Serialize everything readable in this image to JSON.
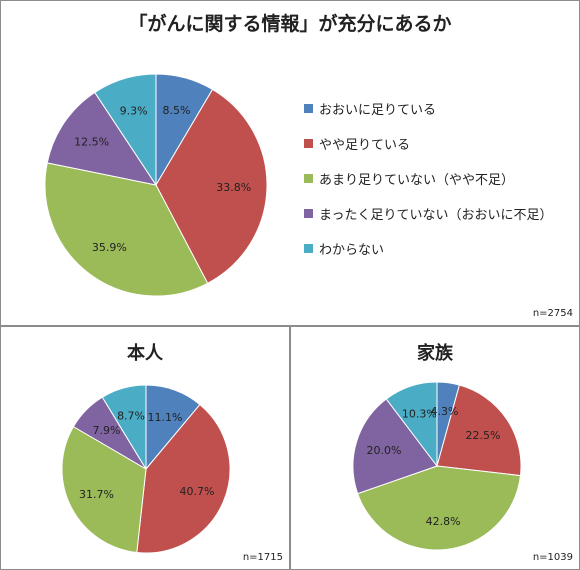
{
  "legend_items": [
    {
      "label": "おおいに足りている",
      "color": "#4f81bd"
    },
    {
      "label": "やや足りている",
      "color": "#c0504d"
    },
    {
      "label": "あまり足りていない（やや不足）",
      "color": "#9bbb59"
    },
    {
      "label": "まったく足りていない（おおいに不足）",
      "color": "#8064a2"
    },
    {
      "label": "わからない",
      "color": "#4bacc6"
    }
  ],
  "chart_data": [
    {
      "type": "pie",
      "title": "「がんに関する情報」が充分にあるか",
      "n_label": "n=2754",
      "categories": [
        "おおいに足りている",
        "やや足りている",
        "あまり足りていない（やや不足）",
        "まったく足りていない（おおいに不足）",
        "わからない"
      ],
      "values": [
        8.5,
        33.8,
        35.9,
        12.5,
        9.3
      ],
      "value_labels": [
        "8.5%",
        "33.8%",
        "35.9%",
        "12.5%",
        "9.3%"
      ],
      "colors": [
        "#4f81bd",
        "#c0504d",
        "#9bbb59",
        "#8064a2",
        "#4bacc6"
      ],
      "legend": "right"
    },
    {
      "type": "pie",
      "title": "本人",
      "n_label": "n=1715",
      "categories": [
        "おおいに足りている",
        "やや足りている",
        "あまり足りていない（やや不足）",
        "まったく足りていない（おおいに不足）",
        "わからない"
      ],
      "values": [
        11.1,
        40.7,
        31.7,
        7.9,
        8.7
      ],
      "value_labels": [
        "11.1%",
        "40.7%",
        "31.7%",
        "7.9%",
        "8.7%"
      ],
      "colors": [
        "#4f81bd",
        "#c0504d",
        "#9bbb59",
        "#8064a2",
        "#4bacc6"
      ]
    },
    {
      "type": "pie",
      "title": "家族",
      "n_label": "n=1039",
      "categories": [
        "おおいに足りている",
        "やや足りている",
        "あまり足りていない（やや不足）",
        "まったく足りていない（おおいに不足）",
        "わからない"
      ],
      "values": [
        4.3,
        22.5,
        42.8,
        20.0,
        10.3
      ],
      "value_labels": [
        "4.3%",
        "22.5%",
        "42.8%",
        "20.0%",
        "10.3%"
      ],
      "colors": [
        "#4f81bd",
        "#c0504d",
        "#9bbb59",
        "#8064a2",
        "#4bacc6"
      ]
    }
  ]
}
